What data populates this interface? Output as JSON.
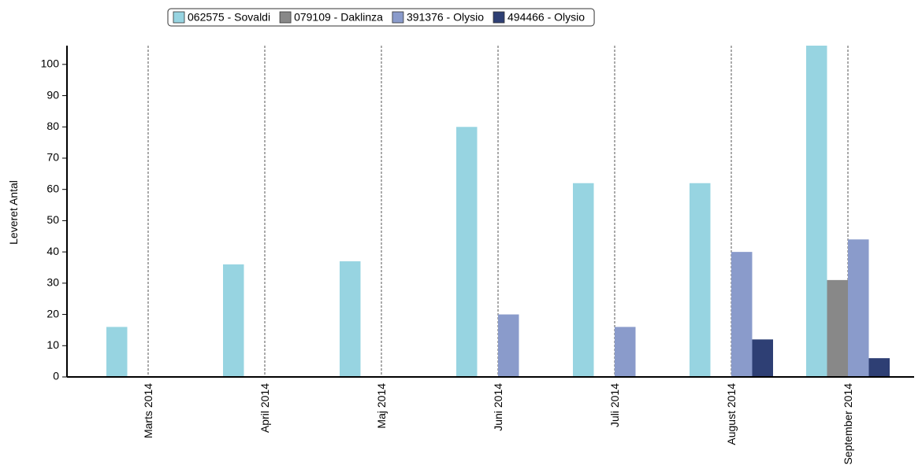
{
  "chart_data": {
    "type": "bar",
    "y_label": "Leveret Antal",
    "categories": [
      "Marts 2014",
      "April 2014",
      "Maj 2014",
      "Juni 2014",
      "Juli 2014",
      "August 2014",
      "September 2014"
    ],
    "series": [
      {
        "name": "062575 - Sovaldi",
        "color": "#97d4e1",
        "values": [
          16,
          36,
          37,
          80,
          62,
          62,
          106
        ]
      },
      {
        "name": "079109 - Daklinza",
        "color": "#888888",
        "values": [
          0,
          0,
          0,
          0,
          0,
          0,
          31
        ]
      },
      {
        "name": "391376 - Olysio",
        "color": "#8a9bcb",
        "values": [
          0,
          0,
          0,
          20,
          16,
          40,
          44
        ]
      },
      {
        "name": "494466 - Olysio",
        "color": "#2e3f74",
        "values": [
          0,
          0,
          0,
          0,
          0,
          12,
          6
        ]
      }
    ],
    "ylim": [
      0,
      106
    ],
    "yticks": [
      0,
      10,
      20,
      30,
      40,
      50,
      60,
      70,
      80,
      90,
      100
    ],
    "legend": "top"
  }
}
